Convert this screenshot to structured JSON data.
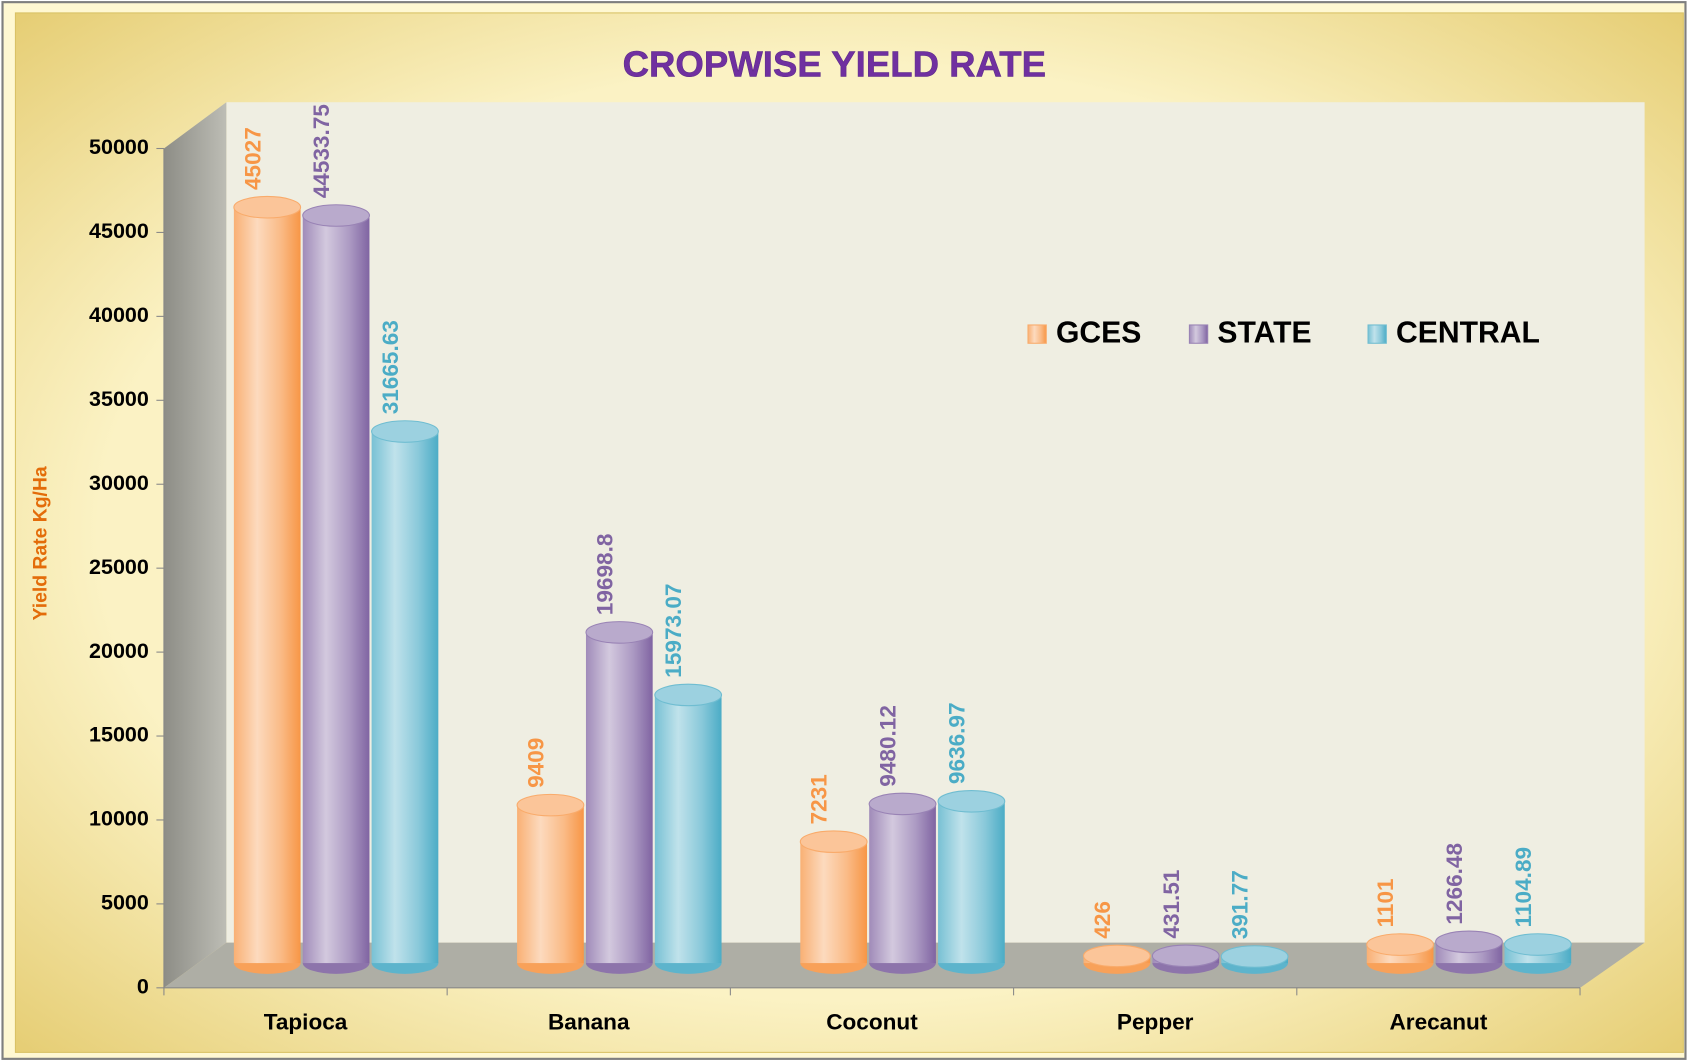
{
  "chart_data": {
    "type": "bar3d",
    "title": "CROPWISE YIELD RATE",
    "y_label": "Yield Rate Kg/Ha",
    "categories": [
      "Tapioca",
      "Banana",
      "Coconut",
      "Pepper",
      "Arecanut"
    ],
    "series": [
      {
        "name": "GCES",
        "color": "#f79646",
        "values": [
          45027,
          9409,
          7231,
          426,
          1101
        ]
      },
      {
        "name": "STATE",
        "color": "#8064a2",
        "values": [
          44533.75,
          19698.8,
          9480.12,
          431.51,
          1266.48
        ]
      },
      {
        "name": "CENTRAL",
        "color": "#4bacc6",
        "values": [
          31665.63,
          15973.07,
          9636.97,
          391.77,
          1104.89
        ]
      }
    ],
    "ylim": [
      0,
      50000
    ],
    "yticks": [
      0,
      5000,
      10000,
      15000,
      20000,
      25000,
      30000,
      35000,
      40000,
      45000,
      50000
    ],
    "legend": "top-right"
  }
}
